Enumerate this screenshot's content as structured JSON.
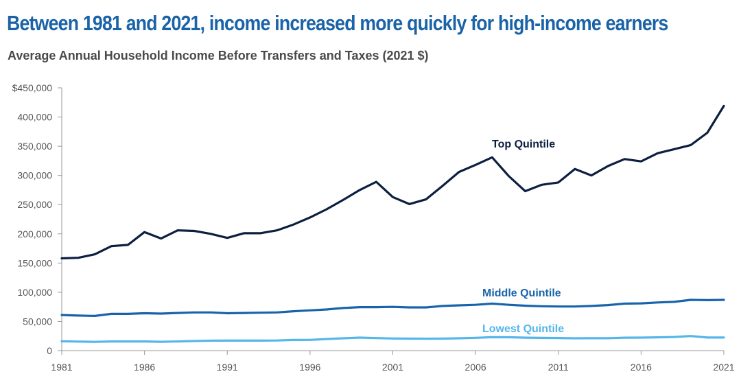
{
  "title": "Between 1981 and 2021, income increased more quickly for high-income earners",
  "subtitle": "Average Annual Household Income Before Transfers and Taxes (2021 $)",
  "chart_data": {
    "type": "line",
    "title": "Between 1981 and 2021, income increased more quickly for high-income earners",
    "subtitle": "Average Annual Household Income Before Transfers and Taxes (2021 $)",
    "xlabel": "",
    "ylabel": "",
    "xlim": [
      1981,
      2021
    ],
    "ylim": [
      0,
      450000
    ],
    "grid": false,
    "x_ticks": [
      "1981",
      "1986",
      "1991",
      "1996",
      "2001",
      "2006",
      "2011",
      "2016",
      "2021"
    ],
    "y_ticks": [
      "$450,000",
      "400,000",
      "350,000",
      "300,000",
      "250,000",
      "200,000",
      "150,000",
      "100,000",
      "50,000",
      "0"
    ],
    "x": [
      1981,
      1982,
      1983,
      1984,
      1985,
      1986,
      1987,
      1988,
      1989,
      1990,
      1991,
      1992,
      1993,
      1994,
      1995,
      1996,
      1997,
      1998,
      1999,
      2000,
      2001,
      2002,
      2003,
      2004,
      2005,
      2006,
      2007,
      2008,
      2009,
      2010,
      2011,
      2012,
      2013,
      2014,
      2015,
      2016,
      2017,
      2018,
      2019,
      2020,
      2021
    ],
    "series": [
      {
        "name": "Top Quintile",
        "color": "#0c1f3f",
        "values": [
          158000,
          159000,
          165000,
          179000,
          181000,
          203000,
          192000,
          206000,
          205000,
          200000,
          193000,
          201000,
          201000,
          206000,
          216000,
          228000,
          242000,
          258000,
          275000,
          289000,
          263000,
          251000,
          259000,
          282000,
          306000,
          318000,
          331000,
          299000,
          273000,
          284000,
          288000,
          311000,
          300000,
          316000,
          328000,
          324000,
          338000,
          345000,
          352000,
          373000,
          419000
        ]
      },
      {
        "name": "Middle Quintile",
        "color": "#1864ab",
        "values": [
          61000,
          60000,
          59500,
          63000,
          63000,
          64000,
          63500,
          64500,
          65500,
          65500,
          64000,
          64500,
          65000,
          65500,
          67500,
          69000,
          70500,
          73000,
          74500,
          74500,
          75000,
          74000,
          74000,
          76500,
          77500,
          78500,
          80500,
          78500,
          77000,
          76000,
          75500,
          75500,
          76500,
          78000,
          80500,
          81000,
          82500,
          83500,
          87000,
          86500,
          87000
        ]
      },
      {
        "name": "Lowest Quintile",
        "color": "#55b6ea",
        "values": [
          16000,
          15500,
          15000,
          15800,
          15800,
          15700,
          15200,
          15800,
          16400,
          17000,
          17200,
          17200,
          17200,
          17400,
          18300,
          18500,
          19800,
          21200,
          22300,
          21500,
          20800,
          20600,
          20500,
          20600,
          21200,
          22000,
          23000,
          22900,
          22200,
          21800,
          21600,
          21200,
          21300,
          21300,
          22200,
          22300,
          22800,
          23400,
          25000,
          22500,
          22500
        ]
      }
    ],
    "annotations": [
      "Top Quintile",
      "Middle Quintile",
      "Lowest Quintile"
    ]
  }
}
